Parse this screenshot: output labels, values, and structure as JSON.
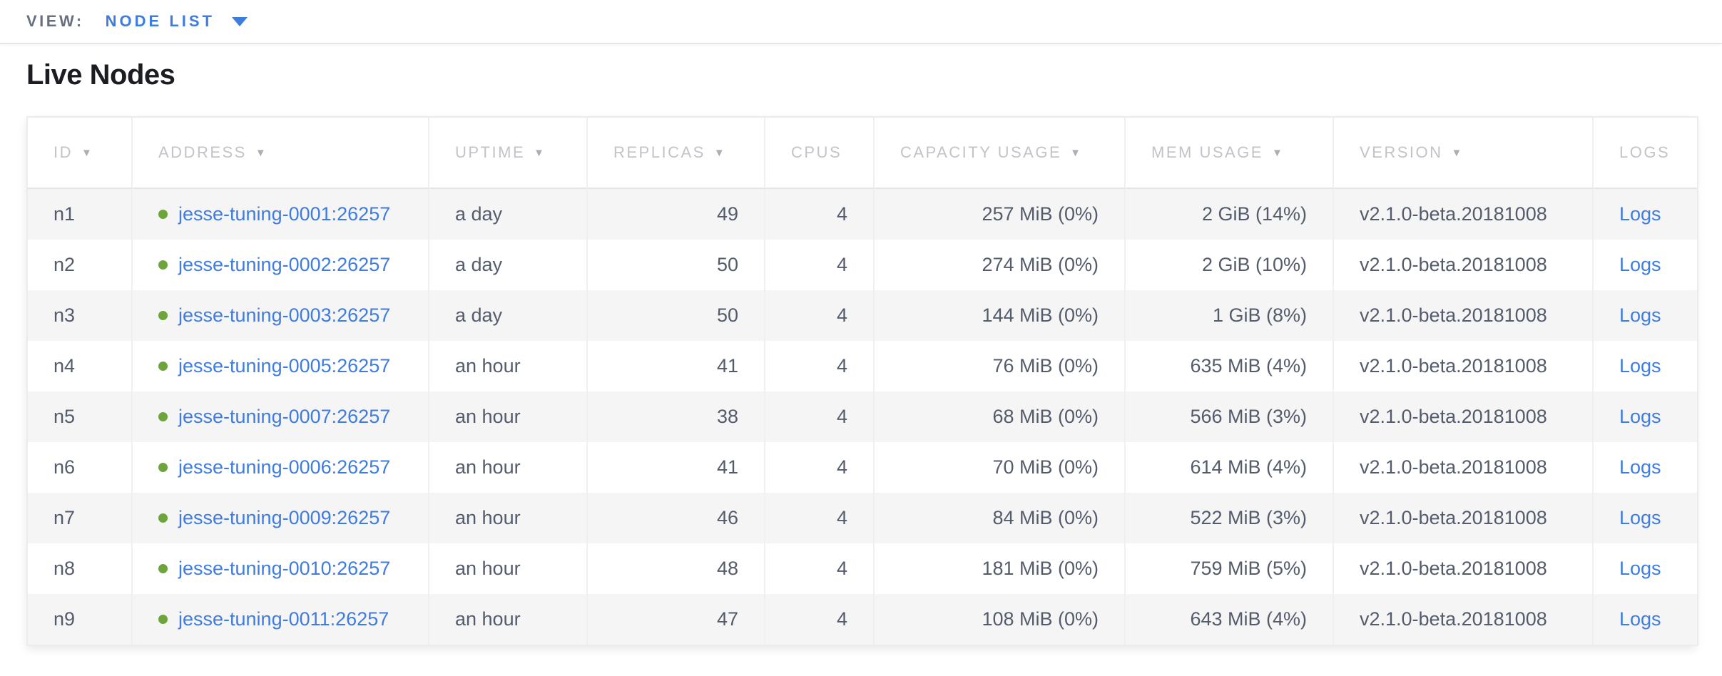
{
  "view_bar": {
    "label": "VIEW:",
    "selected_view": "NODE LIST"
  },
  "page": {
    "title": "Live Nodes"
  },
  "table": {
    "logs_label": "Logs",
    "columns": [
      {
        "key": "id",
        "label": "ID",
        "sortable": true
      },
      {
        "key": "address",
        "label": "ADDRESS",
        "sortable": true
      },
      {
        "key": "uptime",
        "label": "UPTIME",
        "sortable": true
      },
      {
        "key": "replicas",
        "label": "REPLICAS",
        "sortable": true
      },
      {
        "key": "cpus",
        "label": "CPUS",
        "sortable": false
      },
      {
        "key": "capacity-usage",
        "label": "CAPACITY USAGE",
        "sortable": true
      },
      {
        "key": "mem-usage",
        "label": "MEM USAGE",
        "sortable": true
      },
      {
        "key": "version",
        "label": "VERSION",
        "sortable": true
      },
      {
        "key": "logs",
        "label": "LOGS",
        "sortable": false
      }
    ],
    "rows": [
      {
        "id": "n1",
        "address": "jesse-tuning-0001:26257",
        "uptime": "a day",
        "replicas": 49,
        "cpus": 4,
        "capacity_usage": "257 MiB (0%)",
        "mem_usage": "2 GiB (14%)",
        "version": "v2.1.0-beta.20181008"
      },
      {
        "id": "n2",
        "address": "jesse-tuning-0002:26257",
        "uptime": "a day",
        "replicas": 50,
        "cpus": 4,
        "capacity_usage": "274 MiB (0%)",
        "mem_usage": "2 GiB (10%)",
        "version": "v2.1.0-beta.20181008"
      },
      {
        "id": "n3",
        "address": "jesse-tuning-0003:26257",
        "uptime": "a day",
        "replicas": 50,
        "cpus": 4,
        "capacity_usage": "144 MiB (0%)",
        "mem_usage": "1 GiB (8%)",
        "version": "v2.1.0-beta.20181008"
      },
      {
        "id": "n4",
        "address": "jesse-tuning-0005:26257",
        "uptime": "an hour",
        "replicas": 41,
        "cpus": 4,
        "capacity_usage": "76 MiB (0%)",
        "mem_usage": "635 MiB (4%)",
        "version": "v2.1.0-beta.20181008"
      },
      {
        "id": "n5",
        "address": "jesse-tuning-0007:26257",
        "uptime": "an hour",
        "replicas": 38,
        "cpus": 4,
        "capacity_usage": "68 MiB (0%)",
        "mem_usage": "566 MiB (3%)",
        "version": "v2.1.0-beta.20181008"
      },
      {
        "id": "n6",
        "address": "jesse-tuning-0006:26257",
        "uptime": "an hour",
        "replicas": 41,
        "cpus": 4,
        "capacity_usage": "70 MiB (0%)",
        "mem_usage": "614 MiB (4%)",
        "version": "v2.1.0-beta.20181008"
      },
      {
        "id": "n7",
        "address": "jesse-tuning-0009:26257",
        "uptime": "an hour",
        "replicas": 46,
        "cpus": 4,
        "capacity_usage": "84 MiB (0%)",
        "mem_usage": "522 MiB (3%)",
        "version": "v2.1.0-beta.20181008"
      },
      {
        "id": "n8",
        "address": "jesse-tuning-0010:26257",
        "uptime": "an hour",
        "replicas": 48,
        "cpus": 4,
        "capacity_usage": "181 MiB (0%)",
        "mem_usage": "759 MiB (5%)",
        "version": "v2.1.0-beta.20181008"
      },
      {
        "id": "n9",
        "address": "jesse-tuning-0011:26257",
        "uptime": "an hour",
        "replicas": 47,
        "cpus": 4,
        "capacity_usage": "108 MiB (0%)",
        "mem_usage": "643 MiB (4%)",
        "version": "v2.1.0-beta.20181008"
      }
    ]
  },
  "colors": {
    "link_blue": "#3e7ce0",
    "node_live_green": "#6da53c",
    "header_gray": "#c2c4c9",
    "body_text": "#545c6c"
  }
}
